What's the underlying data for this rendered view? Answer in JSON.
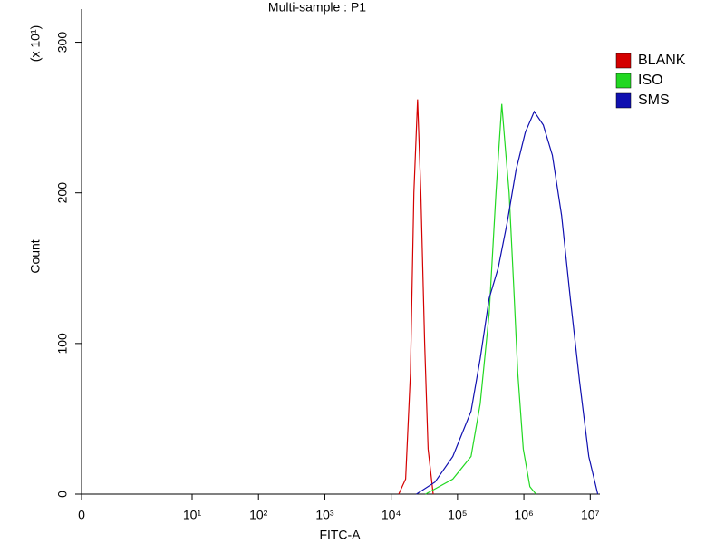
{
  "chart_data": {
    "type": "line",
    "title": "Multi-sample : P1",
    "x_label": "FITC-A",
    "y_label": "Count",
    "y_scale_note": "(x 10¹)",
    "xscale": "biexponential",
    "xlim": [
      0,
      14000000
    ],
    "ylim": [
      0,
      322
    ],
    "xticks": [
      0,
      {
        "value": 10,
        "label": "10¹"
      },
      {
        "value": 100,
        "label": "10²"
      },
      {
        "value": 1000,
        "label": "10³"
      },
      {
        "value": 10000,
        "label": "10⁴"
      },
      {
        "value": 100000,
        "label": "10⁵"
      },
      {
        "value": 1000000,
        "label": "10⁶"
      },
      {
        "value": 10000000,
        "label": "10⁷"
      }
    ],
    "yticks": [
      0,
      100,
      200,
      300
    ],
    "legend": "right",
    "series": [
      {
        "name": "BLANK",
        "color": "#d40000",
        "x": [
          13000,
          16500,
          19500,
          22000,
          25000,
          28000,
          32000,
          36000,
          43000
        ],
        "values": [
          0,
          10,
          80,
          200,
          262,
          200,
          100,
          30,
          0
        ]
      },
      {
        "name": "ISO",
        "color": "#22d822",
        "x": [
          33000,
          85000,
          160000,
          220000,
          300000,
          380000,
          465000,
          525000,
          600000,
          700000,
          810000,
          980000,
          1230000,
          1520000
        ],
        "values": [
          0,
          10,
          25,
          60,
          120,
          200,
          259,
          230,
          200,
          140,
          80,
          30,
          5,
          0
        ]
      },
      {
        "name": "SMS",
        "color": "#1010b0",
        "x": [
          24000,
          45700,
          85000,
          160000,
          220000,
          300000,
          410000,
          560000,
          760000,
          1050000,
          1430000,
          1960000,
          2690000,
          3700000,
          5000000,
          6900000,
          9500000,
          13000000
        ],
        "values": [
          0,
          8,
          25,
          55,
          90,
          130,
          150,
          180,
          215,
          240,
          254,
          245,
          225,
          185,
          130,
          75,
          25,
          0
        ]
      }
    ]
  }
}
